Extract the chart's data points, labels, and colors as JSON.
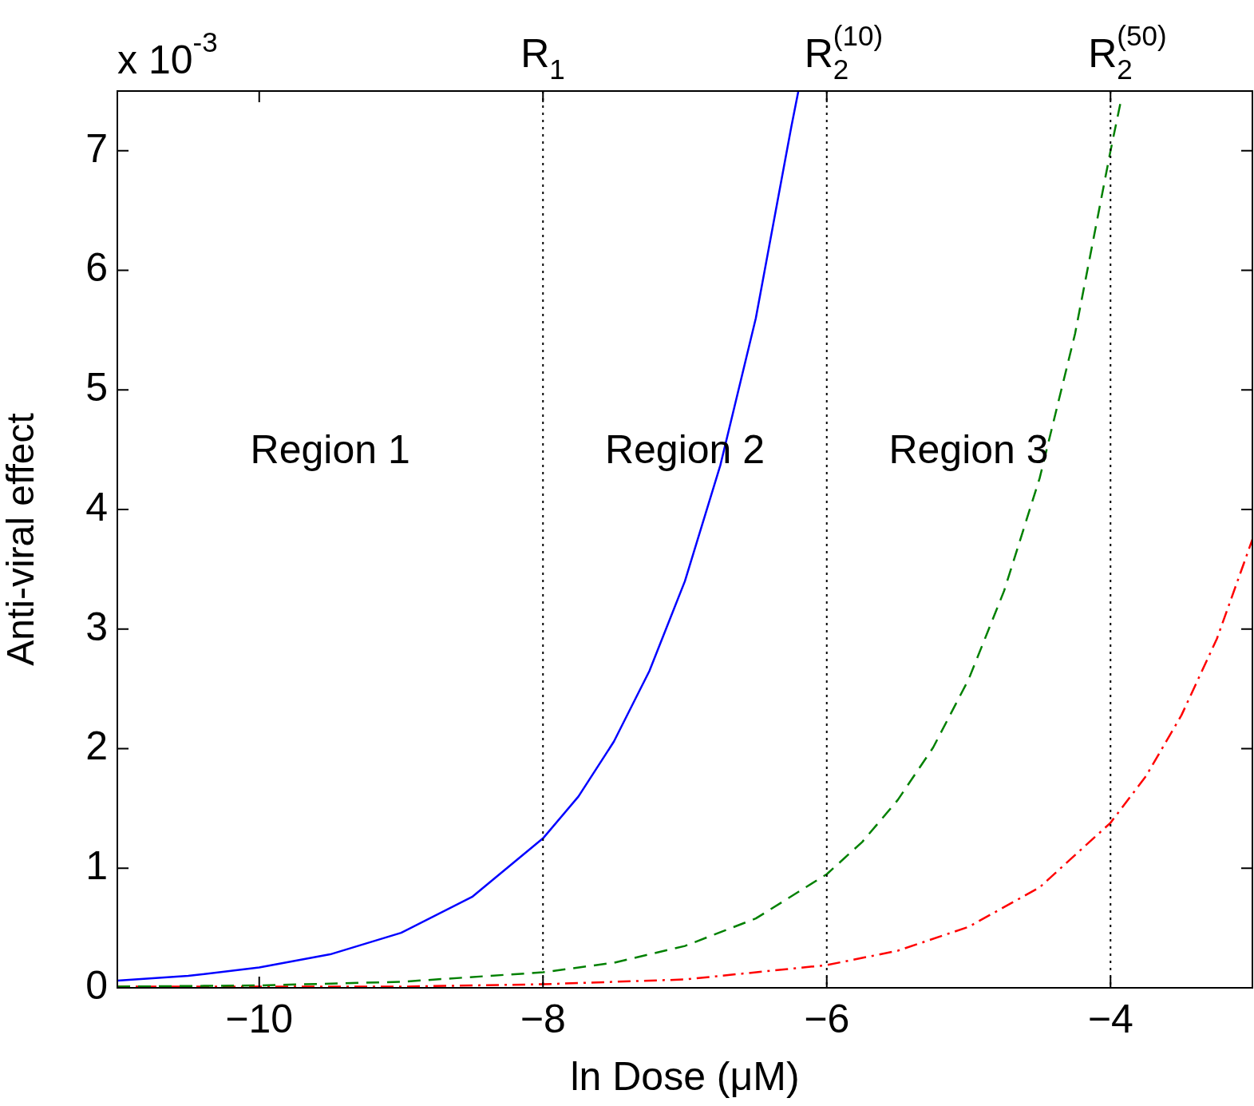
{
  "chart_data": {
    "type": "line",
    "xlabel": "ln Dose (μM)",
    "ylabel": "Anti-viral effect",
    "xlim": [
      -11,
      -3
    ],
    "xticks": [
      -10,
      -8,
      -6,
      -4
    ],
    "ylim": [
      0,
      7.5
    ],
    "yticks": [
      0,
      1,
      2,
      3,
      4,
      5,
      6,
      7
    ],
    "grid": false,
    "legend": false,
    "marker": "none",
    "series": [
      {
        "color": "#0000ff",
        "line_style": "solid",
        "x": [
          -11,
          -10.5,
          -10,
          -9.5,
          -9,
          -8.5,
          -8,
          -7.75,
          -7.5,
          -7.25,
          -7,
          -6.75,
          -6.5,
          -6.25,
          -6.2
        ],
        "values": [
          0.06,
          0.1,
          0.17,
          0.28,
          0.46,
          0.76,
          1.25,
          1.6,
          2.06,
          2.65,
          3.4,
          4.37,
          5.6,
          7.2,
          7.5
        ]
      },
      {
        "color": "#008000",
        "line_style": "dashed",
        "x": [
          -11,
          -10,
          -9,
          -8,
          -7.5,
          -7,
          -6.5,
          -6,
          -5.75,
          -5.5,
          -5.25,
          -5,
          -4.75,
          -4.5,
          -4.25,
          -4,
          -3.93
        ],
        "values": [
          0.01,
          0.02,
          0.05,
          0.13,
          0.21,
          0.35,
          0.58,
          0.95,
          1.22,
          1.57,
          2.01,
          2.58,
          3.32,
          4.26,
          5.47,
          7.0,
          7.4
        ]
      },
      {
        "color": "#ff0000",
        "line_style": "dashdot",
        "x": [
          -11,
          -10,
          -9,
          -8,
          -7,
          -6,
          -5.5,
          -5,
          -4.5,
          -4,
          -3.75,
          -3.5,
          -3.25,
          -3
        ],
        "values": [
          0.01,
          0.01,
          0.01,
          0.03,
          0.07,
          0.19,
          0.31,
          0.51,
          0.84,
          1.38,
          1.77,
          2.28,
          2.92,
          3.75
        ]
      }
    ],
    "ref_lines": [
      {
        "axis": "x",
        "value": -8,
        "label": "R$_{1}$",
        "line_style": "dotted",
        "color": "#000000"
      },
      {
        "axis": "x",
        "value": -6,
        "label": "R$_{2}$$^{(10)}$",
        "line_style": "dotted",
        "color": "#000000"
      },
      {
        "axis": "x",
        "value": -4,
        "label": "R$_{2}$$^{(50)}$",
        "line_style": "dotted",
        "color": "#000000"
      }
    ],
    "annotations": [
      "x 10$^{-3}$",
      "Region 1",
      "Region 2",
      "Region 3"
    ]
  }
}
